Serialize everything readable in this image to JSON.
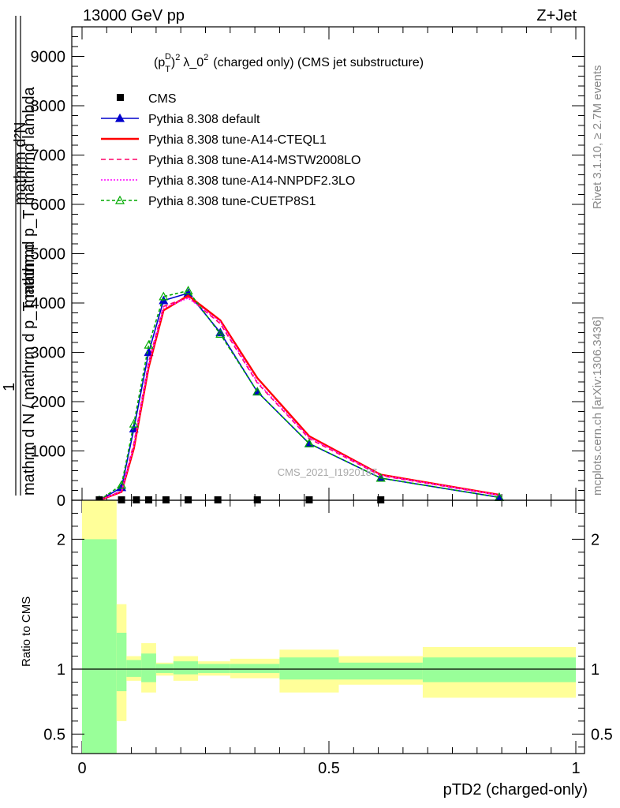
{
  "header": {
    "left": "13000 GeV pp",
    "right": "Z+Jet"
  },
  "side": {
    "rivet": "Rivet 3.1.10, ≥ 2.7M events",
    "mcplots": "mcplots.cern.ch [arXiv:1306.3436]"
  },
  "colors": {
    "cms": "#000000",
    "default": "#0000cc",
    "cteql1": "#ff0000",
    "mstw": "#ff0066",
    "nnpdf": "#ff00ff",
    "cuetp8s1": "#00aa00",
    "band_inner": "#99ff99",
    "band_outer": "#ffff99"
  },
  "chart_data": [
    {
      "type": "line",
      "title": "(p_T^D)^2 λ_0^2 (charged only) (CMS jet substructure)",
      "title_parts": {
        "p": "(p",
        "D": "D",
        "T": "T",
        "close": ")",
        "two": "2",
        "mid": "λ_0",
        "rest": "(charged only) (CMS jet substructure)"
      },
      "ylabel_top": "mathrm d²N",
      "ylabel_top_2": "mathrm d p_T mathrmd lambda",
      "ylabel_one": "1",
      "ylabel_bottom": "mathrm d N / mathrm d p_T mathrm",
      "watermark": "CMS_2021_I1920187",
      "xlim": [
        0,
        1
      ],
      "ylim": [
        0,
        9600
      ],
      "yticks": [
        0,
        1000,
        2000,
        3000,
        4000,
        5000,
        6000,
        7000,
        8000,
        9000
      ],
      "ytick_labels": [
        "0",
        "1000",
        "2000",
        "3000",
        "4000",
        "5000",
        "6000",
        "7000",
        "8000",
        "9000"
      ],
      "legend": "top-left",
      "cms": {
        "name": "CMS",
        "x": [
          0.035,
          0.08,
          0.11,
          0.135,
          0.17,
          0.215,
          0.275,
          0.355,
          0.46,
          0.605
        ],
        "values": [
          0,
          0,
          0,
          0,
          0,
          0,
          0,
          0,
          0,
          0
        ]
      },
      "series": [
        {
          "name": "Pythia 8.308 default",
          "key": "default",
          "marker": "filled-triangle",
          "dash": "",
          "x": [
            0.035,
            0.08,
            0.105,
            0.135,
            0.165,
            0.215,
            0.28,
            0.355,
            0.46,
            0.605,
            0.845
          ],
          "values": [
            0,
            260,
            1450,
            3000,
            4050,
            4200,
            3400,
            2200,
            1150,
            450,
            60
          ]
        },
        {
          "name": "Pythia 8.308 tune-A14-CTEQL1",
          "key": "cteql1",
          "marker": "none",
          "dash": "",
          "x": [
            0.035,
            0.08,
            0.105,
            0.135,
            0.165,
            0.215,
            0.28,
            0.355,
            0.46,
            0.605,
            0.845
          ],
          "values": [
            0,
            170,
            1050,
            2700,
            3850,
            4150,
            3650,
            2480,
            1300,
            520,
            110
          ]
        },
        {
          "name": "Pythia 8.308 tune-A14-MSTW2008LO",
          "key": "mstw",
          "marker": "none",
          "dash": "6,4",
          "x": [
            0.035,
            0.08,
            0.105,
            0.135,
            0.165,
            0.215,
            0.28,
            0.355,
            0.46,
            0.605,
            0.845
          ],
          "values": [
            0,
            190,
            1150,
            2800,
            3930,
            4120,
            3580,
            2380,
            1250,
            500,
            100
          ]
        },
        {
          "name": "Pythia 8.308 tune-A14-NNPDF2.3LO",
          "key": "nnpdf",
          "marker": "none",
          "dash": "2,2",
          "x": [
            0.035,
            0.08,
            0.105,
            0.135,
            0.165,
            0.215,
            0.28,
            0.355,
            0.46,
            0.605,
            0.845
          ],
          "values": [
            0,
            180,
            1100,
            2750,
            3900,
            4100,
            3620,
            2400,
            1270,
            510,
            105
          ]
        },
        {
          "name": "Pythia 8.308 tune-CUETP8S1",
          "key": "cuetp8s1",
          "marker": "open-triangle",
          "dash": "4,3",
          "x": [
            0.035,
            0.08,
            0.105,
            0.135,
            0.165,
            0.215,
            0.28,
            0.355,
            0.46,
            0.605,
            0.845
          ],
          "values": [
            0,
            310,
            1550,
            3150,
            4130,
            4250,
            3370,
            2200,
            1150,
            450,
            60
          ]
        }
      ]
    },
    {
      "type": "area",
      "ylabel": "Ratio to CMS",
      "xlabel": "pTD2 (charged-only)",
      "xlim": [
        0,
        1
      ],
      "ylim": [
        0.35,
        2.3
      ],
      "xticks": [
        0,
        0.5,
        1
      ],
      "xtick_labels": [
        "0",
        "0.5",
        "1"
      ],
      "yticks": [
        0.5,
        1,
        2
      ],
      "ytick_labels": [
        "0.5",
        "1",
        "2"
      ],
      "reference": 1,
      "bins": [
        {
          "x0": 0.0,
          "x1": 0.07,
          "inner": [
            0.35,
            2.0
          ],
          "outer": [
            0.35,
            2.3
          ]
        },
        {
          "x0": 0.07,
          "x1": 0.09,
          "inner": [
            0.83,
            1.28
          ],
          "outer": [
            0.6,
            1.5
          ]
        },
        {
          "x0": 0.09,
          "x1": 0.12,
          "inner": [
            0.94,
            1.07
          ],
          "outer": [
            0.91,
            1.1
          ]
        },
        {
          "x0": 0.12,
          "x1": 0.15,
          "inner": [
            0.9,
            1.12
          ],
          "outer": [
            0.82,
            1.2
          ]
        },
        {
          "x0": 0.15,
          "x1": 0.185,
          "inner": [
            0.97,
            1.04
          ],
          "outer": [
            0.95,
            1.05
          ]
        },
        {
          "x0": 0.185,
          "x1": 0.235,
          "inner": [
            0.96,
            1.06
          ],
          "outer": [
            0.91,
            1.1
          ]
        },
        {
          "x0": 0.235,
          "x1": 0.3,
          "inner": [
            0.97,
            1.04
          ],
          "outer": [
            0.95,
            1.06
          ]
        },
        {
          "x0": 0.3,
          "x1": 0.4,
          "inner": [
            0.97,
            1.04
          ],
          "outer": [
            0.93,
            1.08
          ]
        },
        {
          "x0": 0.4,
          "x1": 0.52,
          "inner": [
            0.92,
            1.09
          ],
          "outer": [
            0.82,
            1.15
          ]
        },
        {
          "x0": 0.52,
          "x1": 0.69,
          "inner": [
            0.92,
            1.05
          ],
          "outer": [
            0.88,
            1.1
          ]
        },
        {
          "x0": 0.69,
          "x1": 1.0,
          "inner": [
            0.9,
            1.09
          ],
          "outer": [
            0.78,
            1.17
          ]
        }
      ]
    }
  ]
}
